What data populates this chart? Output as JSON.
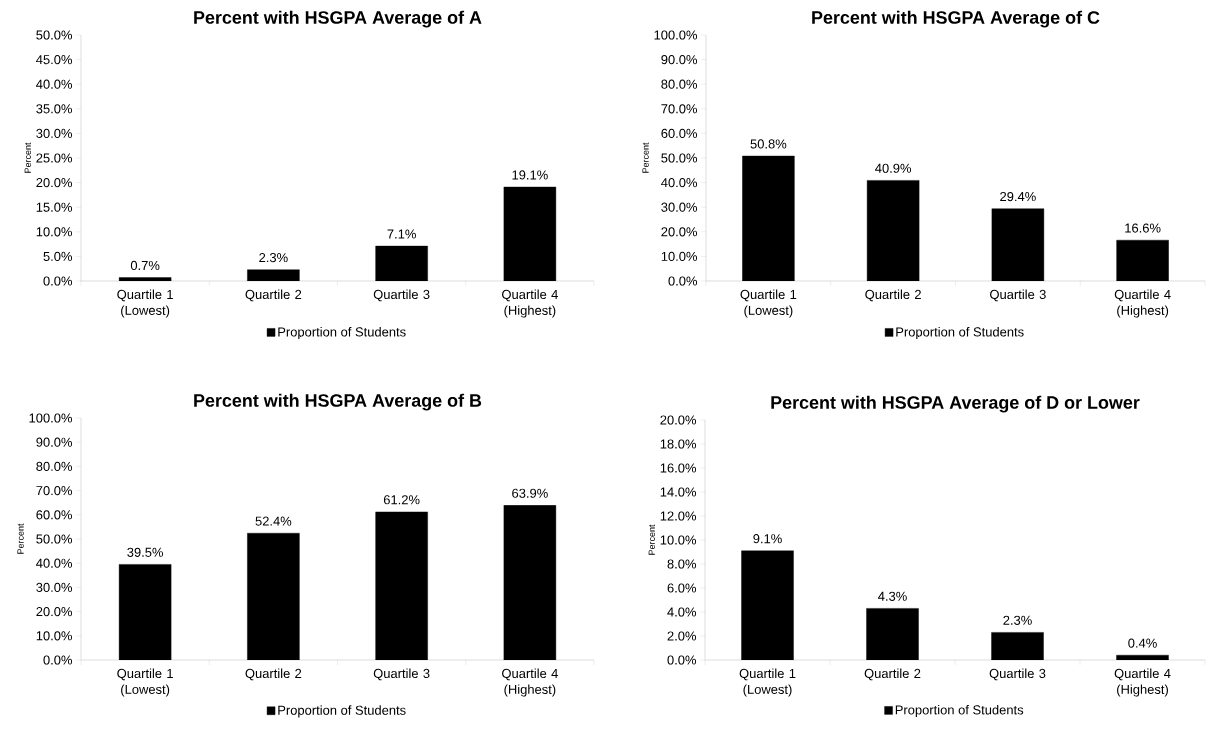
{
  "chart_data": [
    {
      "type": "bar",
      "title": "Percent with HSGPA Average of A",
      "ylabel": "Percent",
      "categories": [
        "Quartile 1 (Lowest)",
        "Quartile 2",
        "Quartile 3",
        "Quartile 4 (Highest)"
      ],
      "series": [
        {
          "name": "Proportion of Students",
          "color": "#000000",
          "values": [
            0.7,
            2.3,
            7.1,
            19.1
          ],
          "value_labels": [
            "0.7%",
            "2.3%",
            "7.1%",
            "19.1%"
          ]
        }
      ],
      "ylim": [
        0,
        50
      ],
      "yticks": [
        {
          "value": 0,
          "label": "0.0%"
        },
        {
          "value": 5,
          "label": "5.0%"
        },
        {
          "value": 10,
          "label": "10.0%"
        },
        {
          "value": 15,
          "label": "15.0%"
        },
        {
          "value": 20,
          "label": "20.0%"
        },
        {
          "value": 25,
          "label": "25.0%"
        },
        {
          "value": 30,
          "label": "30.0%"
        },
        {
          "value": 35,
          "label": "35.0%"
        },
        {
          "value": 40,
          "label": "40.0%"
        },
        {
          "value": 45,
          "label": "45.0%"
        },
        {
          "value": 50,
          "label": "50.0%"
        }
      ],
      "legend": "bottom"
    },
    {
      "type": "bar",
      "title": "Percent with HSGPA Average of C",
      "ylabel": "Percent",
      "categories": [
        "Quartile 1 (Lowest)",
        "Quartile 2",
        "Quartile 3",
        "Quartile 4 (Highest)"
      ],
      "series": [
        {
          "name": "Proportion of Students",
          "color": "#000000",
          "values": [
            50.8,
            40.9,
            29.4,
            16.6
          ],
          "value_labels": [
            "50.8%",
            "40.9%",
            "29.4%",
            "16.6%"
          ]
        }
      ],
      "ylim": [
        0,
        100
      ],
      "yticks": [
        {
          "value": 0,
          "label": "0.0%"
        },
        {
          "value": 10,
          "label": "10.0%"
        },
        {
          "value": 20,
          "label": "20.0%"
        },
        {
          "value": 30,
          "label": "30.0%"
        },
        {
          "value": 40,
          "label": "40.0%"
        },
        {
          "value": 50,
          "label": "50.0%"
        },
        {
          "value": 60,
          "label": "60.0%"
        },
        {
          "value": 70,
          "label": "70.0%"
        },
        {
          "value": 80,
          "label": "80.0%"
        },
        {
          "value": 90,
          "label": "90.0%"
        },
        {
          "value": 100,
          "label": "100.0%"
        }
      ],
      "legend": "bottom"
    },
    {
      "type": "bar",
      "title": "Percent with HSGPA Average of B",
      "ylabel": "Percent",
      "categories": [
        "Quartile 1 (Lowest)",
        "Quartile 2",
        "Quartile 3",
        "Quartile 4 (Highest)"
      ],
      "series": [
        {
          "name": "Proportion of Students",
          "color": "#000000",
          "values": [
            39.5,
            52.4,
            61.2,
            63.9
          ],
          "value_labels": [
            "39.5%",
            "52.4%",
            "61.2%",
            "63.9%"
          ]
        }
      ],
      "ylim": [
        0,
        100
      ],
      "yticks": [
        {
          "value": 0,
          "label": "0.0%"
        },
        {
          "value": 10,
          "label": "10.0%"
        },
        {
          "value": 20,
          "label": "20.0%"
        },
        {
          "value": 30,
          "label": "30.0%"
        },
        {
          "value": 40,
          "label": "40.0%"
        },
        {
          "value": 50,
          "label": "50.0%"
        },
        {
          "value": 60,
          "label": "60.0%"
        },
        {
          "value": 70,
          "label": "70.0%"
        },
        {
          "value": 80,
          "label": "80.0%"
        },
        {
          "value": 90,
          "label": "90.0%"
        },
        {
          "value": 100,
          "label": "100.0%"
        }
      ],
      "legend": "bottom"
    },
    {
      "type": "bar",
      "title": "Percent with HSGPA Average of D or Lower",
      "ylabel": "Percent",
      "categories": [
        "Quartile 1 (Lowest)",
        "Quartile 2",
        "Quartile 3",
        "Quartile 4 (Highest)"
      ],
      "series": [
        {
          "name": "Proportion of Students",
          "color": "#000000",
          "values": [
            9.1,
            4.3,
            2.3,
            0.4
          ],
          "value_labels": [
            "9.1%",
            "4.3%",
            "2.3%",
            "0.4%"
          ]
        }
      ],
      "ylim": [
        0,
        20
      ],
      "yticks": [
        {
          "value": 0,
          "label": "0.0%"
        },
        {
          "value": 2,
          "label": "2.0%"
        },
        {
          "value": 4,
          "label": "4.0%"
        },
        {
          "value": 6,
          "label": "6.0%"
        },
        {
          "value": 8,
          "label": "8.0%"
        },
        {
          "value": 10,
          "label": "10.0%"
        },
        {
          "value": 12,
          "label": "12.0%"
        },
        {
          "value": 14,
          "label": "14.0%"
        },
        {
          "value": 16,
          "label": "16.0%"
        },
        {
          "value": 18,
          "label": "18.0%"
        },
        {
          "value": 20,
          "label": "20.0%"
        }
      ],
      "legend": "bottom"
    }
  ]
}
